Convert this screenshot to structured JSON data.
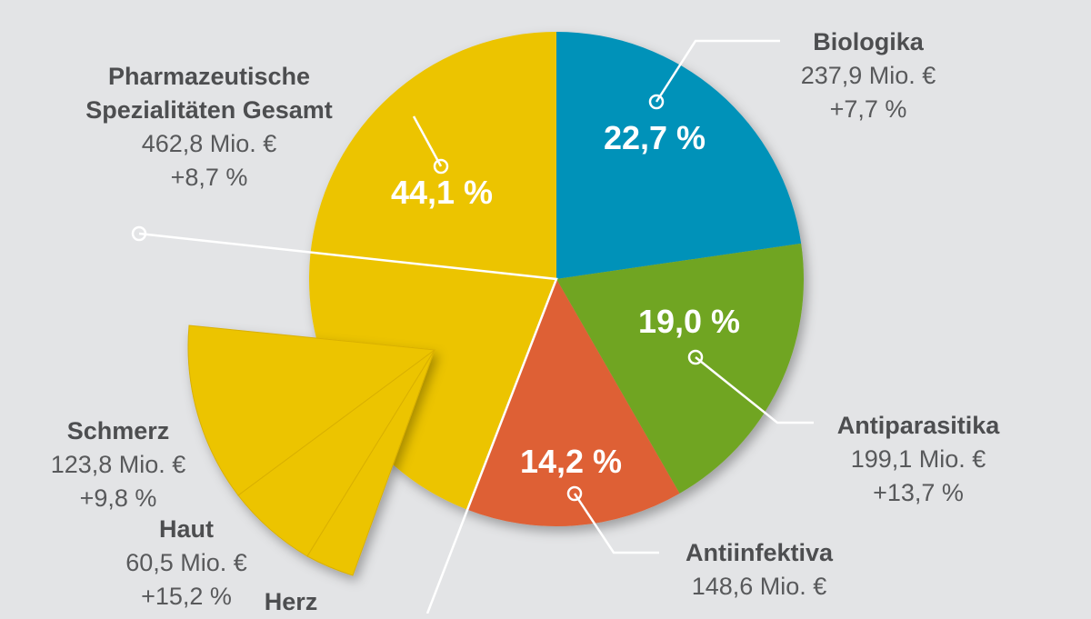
{
  "chart_data": {
    "type": "pie",
    "slices": [
      {
        "name": "Biologika",
        "percent": 22.7,
        "percent_label": "22,7 %",
        "value_label": "237,9 Mio. €",
        "change_label": "+7,7 %",
        "color": "#0092b9"
      },
      {
        "name": "Antiparasitika",
        "percent": 19.0,
        "percent_label": "19,0 %",
        "value_label": "199,1 Mio. €",
        "change_label": "+13,7 %",
        "color": "#6fa523"
      },
      {
        "name": "Antiinfektiva",
        "percent": 14.2,
        "percent_label": "14,2 %",
        "value_label": "148,6 Mio. €",
        "change_label": "",
        "color": "#de6034"
      },
      {
        "name": "Pharmazeutische Spezialitäten Gesamt",
        "name_line1": "Pharmazeutische",
        "name_line2": "Spezialitäten Gesamt",
        "percent": 44.1,
        "percent_label": "44,1 %",
        "value_label": "462,8 Mio. €",
        "change_label": "+8,7 %",
        "color": "#ecc400"
      }
    ],
    "sub_slices": [
      {
        "name": "Schmerz",
        "value_label": "123,8 Mio. €",
        "change_label": "+9,8 %"
      },
      {
        "name": "Haut",
        "value_label": "60,5 Mio. €",
        "change_label": "+15,2 %"
      },
      {
        "name": "Herz"
      }
    ]
  }
}
